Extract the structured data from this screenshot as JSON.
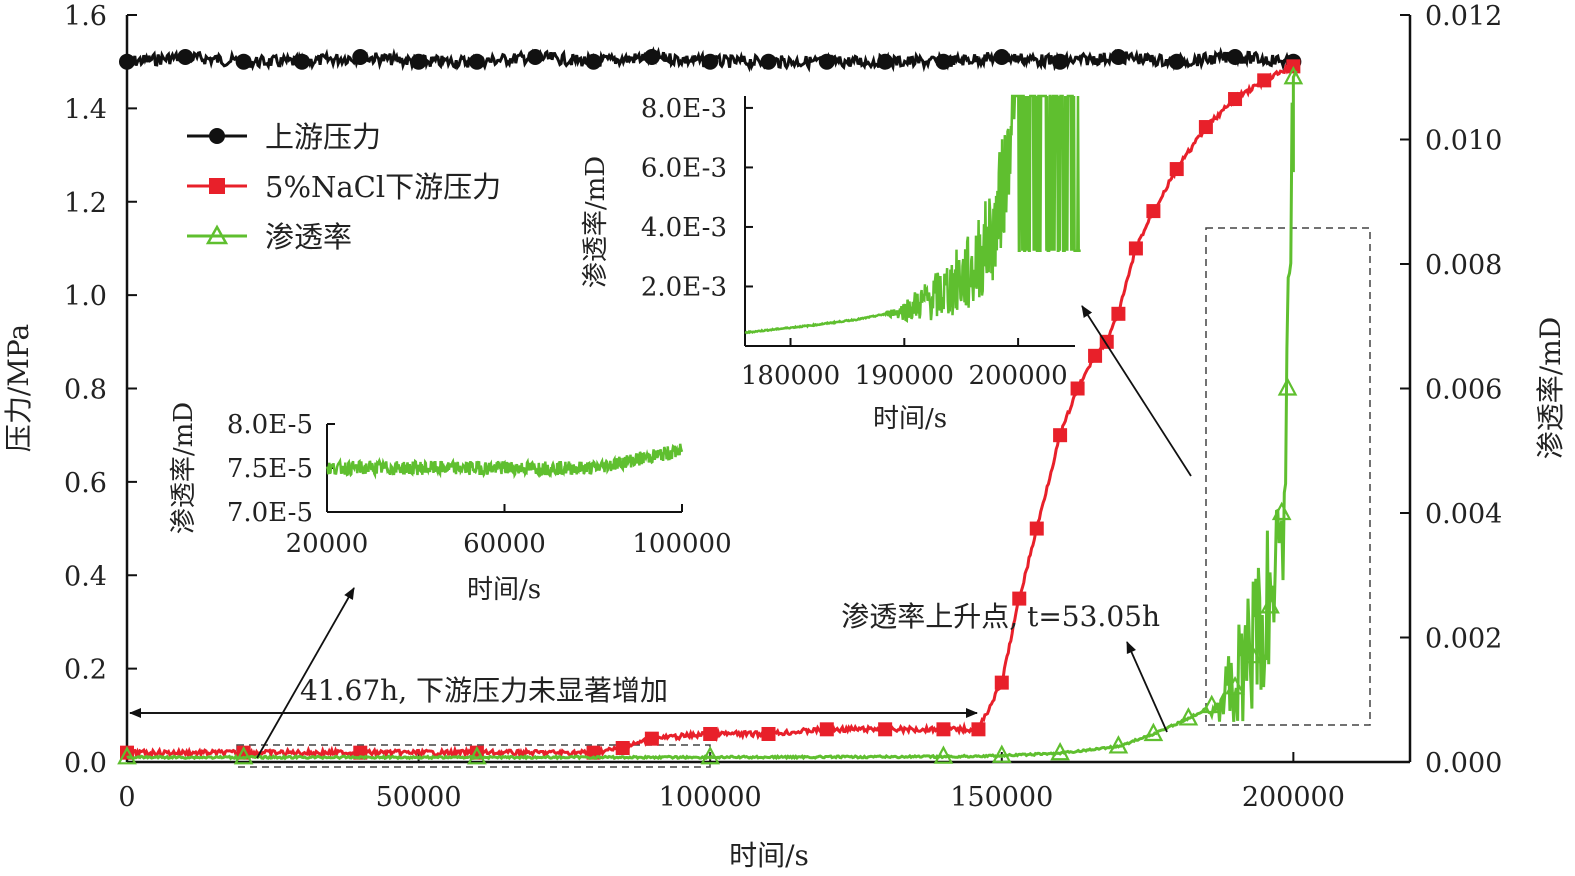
{
  "chart_data": {
    "type": "line",
    "xlabel": "时间/s",
    "ylabel_left": "压力/MPa",
    "ylabel_right": "渗透率/mD",
    "xlim": [
      0,
      220000
    ],
    "ylim_left": [
      0,
      1.6
    ],
    "ylim_right": [
      0,
      0.012
    ],
    "x_ticks": [
      "0",
      "50000",
      "100000",
      "150000",
      "200000"
    ],
    "y_left_ticks": [
      "0.0",
      "0.2",
      "0.4",
      "0.6",
      "0.8",
      "1.0",
      "1.2",
      "1.4",
      "1.6"
    ],
    "y_right_ticks": [
      "0.000",
      "0.002",
      "0.004",
      "0.006",
      "0.008",
      "0.010",
      "0.012"
    ],
    "legend_position": "top-left",
    "series": [
      {
        "name": "上游压力",
        "axis": "left",
        "color": "#111111",
        "marker": "circle",
        "x": [
          0,
          10000,
          20000,
          30000,
          40000,
          50000,
          60000,
          70000,
          80000,
          90000,
          100000,
          110000,
          120000,
          130000,
          140000,
          150000,
          160000,
          170000,
          180000,
          190000,
          200000
        ],
        "y": [
          1.5,
          1.51,
          1.5,
          1.5,
          1.51,
          1.5,
          1.5,
          1.51,
          1.5,
          1.51,
          1.5,
          1.5,
          1.5,
          1.5,
          1.5,
          1.51,
          1.5,
          1.51,
          1.5,
          1.51,
          1.5
        ]
      },
      {
        "name": "5%NaCl下游压力",
        "axis": "left",
        "color": "#e8202a",
        "marker": "square",
        "x": [
          0,
          20000,
          40000,
          60000,
          80000,
          85000,
          90000,
          100000,
          110000,
          120000,
          130000,
          140000,
          146000,
          150000,
          153000,
          156000,
          160000,
          163000,
          166000,
          168000,
          170000,
          173000,
          176000,
          180000,
          185000,
          190000,
          195000,
          200000
        ],
        "y": [
          0.02,
          0.02,
          0.02,
          0.02,
          0.02,
          0.03,
          0.05,
          0.06,
          0.06,
          0.07,
          0.07,
          0.07,
          0.07,
          0.17,
          0.35,
          0.5,
          0.7,
          0.8,
          0.87,
          0.9,
          0.96,
          1.1,
          1.18,
          1.27,
          1.36,
          1.42,
          1.46,
          1.49
        ]
      },
      {
        "name": "渗透率",
        "axis": "right",
        "color": "#5fbf2f",
        "marker": "triangle",
        "x": [
          0,
          20000,
          60000,
          100000,
          140000,
          150000,
          160000,
          170000,
          176000,
          182000,
          186000,
          190000,
          193000,
          196000,
          198000,
          199000,
          200000
        ],
        "y": [
          7.5e-05,
          7.52e-05,
          7.54e-05,
          7.6e-05,
          8.5e-05,
          0.0001,
          0.00014,
          0.00025,
          0.00045,
          0.0007,
          0.0009,
          0.0012,
          0.0017,
          0.0025,
          0.004,
          0.006,
          0.011
        ]
      }
    ],
    "annotations": [
      "41.67h, 下游压力未显著增加",
      "渗透率上升点, t=53.05h"
    ],
    "inset_right": {
      "xlabel": "时间/s",
      "ylabel": "渗透率/mD",
      "x_ticks": [
        "180000",
        "190000",
        "200000"
      ],
      "y_ticks": [
        "2.0E-3",
        "4.0E-3",
        "6.0E-3",
        "8.0E-3"
      ],
      "xlim": [
        176000,
        205000
      ],
      "ylim": [
        0,
        0.0084
      ]
    },
    "inset_left": {
      "xlabel": "时间/s",
      "ylabel": "渗透率/mD",
      "x_ticks": [
        "20000",
        "60000",
        "100000"
      ],
      "y_ticks": [
        "7.0E-5",
        "7.5E-5",
        "8.0E-5"
      ],
      "xlim": [
        20000,
        100000
      ],
      "ylim": [
        7e-05,
        8e-05
      ]
    }
  }
}
